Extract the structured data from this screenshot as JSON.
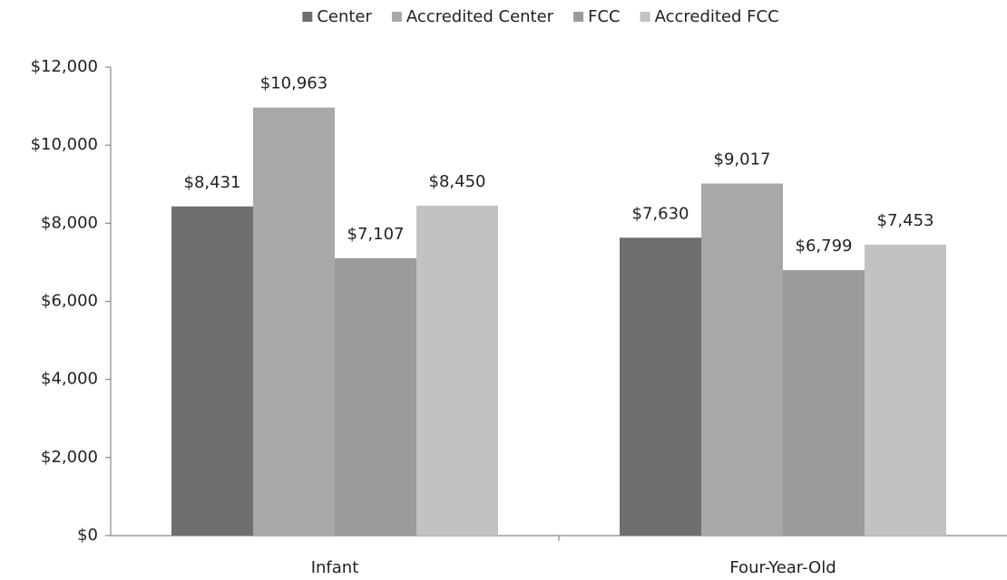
{
  "chart_data": {
    "type": "bar",
    "categories": [
      "Infant",
      "Four-Year-Old"
    ],
    "series": [
      {
        "name": "Center",
        "color": "#6f6f6f",
        "values": [
          8431,
          7630
        ],
        "value_labels": [
          "$8,431",
          "$7,630"
        ]
      },
      {
        "name": "Accredited Center",
        "color": "#a8a8a8",
        "values": [
          10963,
          9017
        ],
        "value_labels": [
          "$10,963",
          "$9,017"
        ]
      },
      {
        "name": "FCC",
        "color": "#9b9b9b",
        "values": [
          7107,
          6799
        ],
        "value_labels": [
          "$7,107",
          "$6,799"
        ]
      },
      {
        "name": "Accredited FCC",
        "color": "#c2c2c2",
        "values": [
          8450,
          7453
        ],
        "value_labels": [
          "$8,450",
          "$7,453"
        ]
      }
    ],
    "ylim": [
      0,
      12000
    ],
    "yticks": [
      {
        "value": 0,
        "label": "$0"
      },
      {
        "value": 2000,
        "label": "$2,000"
      },
      {
        "value": 4000,
        "label": "$4,000"
      },
      {
        "value": 6000,
        "label": "$6,000"
      },
      {
        "value": 8000,
        "label": "$8,000"
      },
      {
        "value": 10000,
        "label": "$10,000"
      },
      {
        "value": 12000,
        "label": "$12,000"
      }
    ],
    "legend": "top"
  }
}
